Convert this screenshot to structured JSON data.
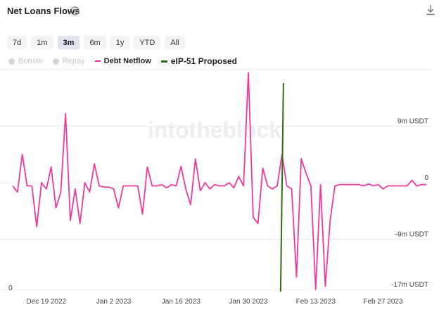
{
  "header": {
    "title": "Net Loans Flows",
    "help_icon": "question-circle-icon",
    "download_icon": "download-icon"
  },
  "ranges": {
    "items": [
      "7d",
      "1m",
      "3m",
      "6m",
      "1y",
      "YTD",
      "All"
    ],
    "active": "3m"
  },
  "legend": [
    {
      "label": "Borrow",
      "enabled": false,
      "color": "#d3d5d9"
    },
    {
      "label": "Repay",
      "enabled": false,
      "color": "#d3d5d9"
    },
    {
      "label": "Debt Netflow",
      "enabled": true,
      "color": "#f0399c"
    },
    {
      "label": "eIP-51 Proposed",
      "enabled": true,
      "color": "#2f6e12"
    }
  ],
  "watermark": "intotheblock",
  "colors": {
    "series": "#f0399c",
    "event": "#2f6e12",
    "grid": "#e9ebef"
  },
  "chart_data": {
    "type": "line",
    "title": "Net Loans Flows",
    "x_start": "2022-12-12",
    "x_end": "2023-03-08",
    "x_ticks": [
      {
        "date": "2022-12-19",
        "label": "Dec 19 2022"
      },
      {
        "date": "2023-01-02",
        "label": "Jan 2 2023"
      },
      {
        "date": "2023-01-16",
        "label": "Jan 16 2023"
      },
      {
        "date": "2023-01-30",
        "label": "Jan 30 2023"
      },
      {
        "date": "2023-02-13",
        "label": "Feb 13 2023"
      },
      {
        "date": "2023-02-27",
        "label": "Feb 27 2023"
      }
    ],
    "y_ticks_right": [
      {
        "value": 9000000,
        "label": "9m USDT"
      },
      {
        "value": 0,
        "label": "0"
      },
      {
        "value": -9000000,
        "label": "-9m USDT"
      },
      {
        "value": -17000000,
        "label": "-17m USDT"
      }
    ],
    "y_left_label": "0",
    "ylim": [
      -17000000,
      18000000
    ],
    "grid": true,
    "series": [
      {
        "name": "Debt Netflow",
        "color": "#f0399c",
        "x": [
          "2022-12-12",
          "2022-12-13",
          "2022-12-14",
          "2022-12-15",
          "2022-12-16",
          "2022-12-17",
          "2022-12-18",
          "2022-12-19",
          "2022-12-20",
          "2022-12-21",
          "2022-12-22",
          "2022-12-23",
          "2022-12-24",
          "2022-12-25",
          "2022-12-26",
          "2022-12-27",
          "2022-12-28",
          "2022-12-29",
          "2022-12-30",
          "2022-12-31",
          "2023-01-01",
          "2023-01-02",
          "2023-01-03",
          "2023-01-04",
          "2023-01-05",
          "2023-01-06",
          "2023-01-07",
          "2023-01-08",
          "2023-01-09",
          "2023-01-10",
          "2023-01-11",
          "2023-01-12",
          "2023-01-13",
          "2023-01-14",
          "2023-01-15",
          "2023-01-16",
          "2023-01-17",
          "2023-01-18",
          "2023-01-19",
          "2023-01-20",
          "2023-01-21",
          "2023-01-22",
          "2023-01-23",
          "2023-01-24",
          "2023-01-25",
          "2023-01-26",
          "2023-01-27",
          "2023-01-28",
          "2023-01-29",
          "2023-01-30",
          "2023-01-31",
          "2023-02-01",
          "2023-02-02",
          "2023-02-03",
          "2023-02-04",
          "2023-02-05",
          "2023-02-06",
          "2023-02-07",
          "2023-02-08",
          "2023-02-09",
          "2023-02-10",
          "2023-02-11",
          "2023-02-12",
          "2023-02-13",
          "2023-02-14",
          "2023-02-15",
          "2023-02-16",
          "2023-02-17",
          "2023-02-18",
          "2023-02-19",
          "2023-02-20",
          "2023-02-21",
          "2023-02-22",
          "2023-02-23",
          "2023-02-24",
          "2023-02-25",
          "2023-02-26",
          "2023-02-27",
          "2023-02-28",
          "2023-03-01",
          "2023-03-02",
          "2023-03-03",
          "2023-03-04",
          "2023-03-05",
          "2023-03-06",
          "2023-03-07",
          "2023-03-08"
        ],
        "y": [
          -500000,
          -1500000,
          4500000,
          -500000,
          -500000,
          -7000000,
          0,
          -1000000,
          2500000,
          -4000000,
          -1500000,
          11000000,
          -6000000,
          -1000000,
          -6500000,
          0,
          -1500000,
          3000000,
          -500000,
          -700000,
          -700000,
          -1000000,
          -4000000,
          -500000,
          -500000,
          -500000,
          -500000,
          -5000000,
          2500000,
          -500000,
          -500000,
          -300000,
          -800000,
          -300000,
          -500000,
          2600000,
          -1000000,
          -3500000,
          3800000,
          -1300000,
          0,
          -1000000,
          -300000,
          -500000,
          -500000,
          0,
          -800000,
          1000000,
          -500000,
          17500000,
          -5500000,
          -6500000,
          2300000,
          -500000,
          -1000000,
          -500000,
          4500000,
          -500000,
          -1000000,
          -15000000,
          3800000,
          1500000,
          -500000,
          -17000000,
          -300000,
          -16500000,
          -6000000,
          -500000,
          -300000,
          -300000,
          -300000,
          -300000,
          -300000,
          -500000,
          -200000,
          -500000,
          -300000,
          -1000000,
          -500000,
          -500000,
          -500000,
          -500000,
          -500000,
          400000,
          -500000,
          -300000,
          -300000
        ]
      }
    ],
    "event_marker": {
      "name": "eIP-51 Proposed",
      "date": "2023-02-06",
      "color": "#2f6e12"
    }
  }
}
